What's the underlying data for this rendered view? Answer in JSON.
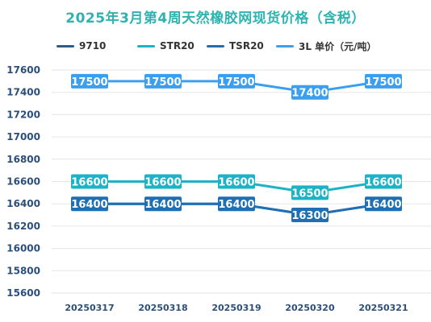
{
  "title": "2025年3月第4周天然橡胶网现货价格（含税）",
  "colors": {
    "title": "#2fb3b0",
    "axis_text": "#2b4f7a",
    "grid": "#e6e6e6",
    "series": [
      "#2a5d87",
      "#1cb3c6",
      "#1f6fb4",
      "#3a9ff0"
    ]
  },
  "chart_data": {
    "type": "line",
    "title": "2025年3月第4周天然橡胶网现货价格（含税）",
    "xlabel": "",
    "ylabel": "",
    "categories": [
      "20250317",
      "20250318",
      "20250319",
      "20250320",
      "20250321"
    ],
    "ylim": [
      15600,
      17600
    ],
    "yticks": [
      15600,
      15800,
      16000,
      16200,
      16400,
      16600,
      16800,
      17000,
      17200,
      17400,
      17600
    ],
    "grid": true,
    "legend_position": "top",
    "series": [
      {
        "name": "9710",
        "values": [
          16400,
          16400,
          16400,
          16300,
          16400
        ],
        "labeled": false
      },
      {
        "name": "STR20",
        "values": [
          16600,
          16600,
          16600,
          16500,
          16600
        ],
        "labeled": true
      },
      {
        "name": "TSR20",
        "values": [
          16400,
          16400,
          16400,
          16300,
          16400
        ],
        "labeled": true
      },
      {
        "name": "3L  单价（元/吨）",
        "values": [
          17500,
          17500,
          17500,
          17400,
          17500
        ],
        "labeled": true
      }
    ]
  }
}
